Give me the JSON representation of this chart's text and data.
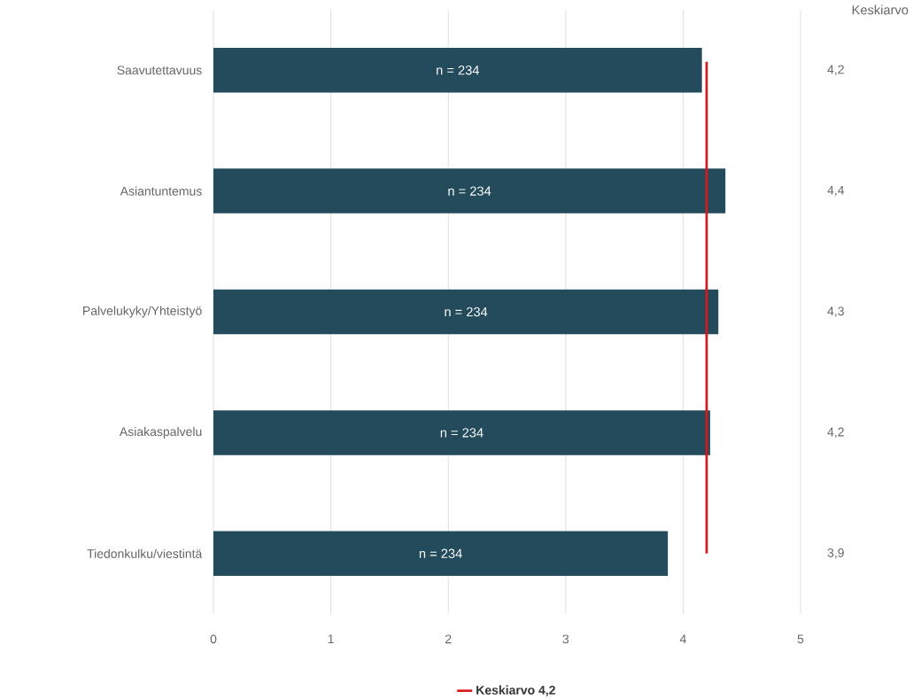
{
  "chart_data": {
    "type": "bar",
    "orientation": "horizontal",
    "categories": [
      "Saavutettavuus",
      "Asiantuntemus",
      "Palvelukyky/Yhteistyö",
      "Asiakaspalvelu",
      "Tiedonkulku/viestintä"
    ],
    "values": [
      4.16,
      4.36,
      4.3,
      4.23,
      3.87
    ],
    "color": "#234b5b",
    "value_labels": [
      "4,2",
      "4,4",
      "4,3",
      "4,2",
      "3,9"
    ],
    "xlim": [
      0,
      5
    ],
    "xticks": [
      0,
      1,
      2,
      3,
      4,
      5
    ],
    "grid": "x",
    "legend": "bottom",
    "ref_lines": [
      {
        "axis": "x",
        "value": 4.2,
        "label": "Keskiarvo 4,2",
        "color": "#d7191c"
      }
    ],
    "annotations": [
      "Keskiarvo",
      "n = 234",
      "n = 234",
      "n = 234",
      "n = 234",
      "n = 234"
    ]
  }
}
